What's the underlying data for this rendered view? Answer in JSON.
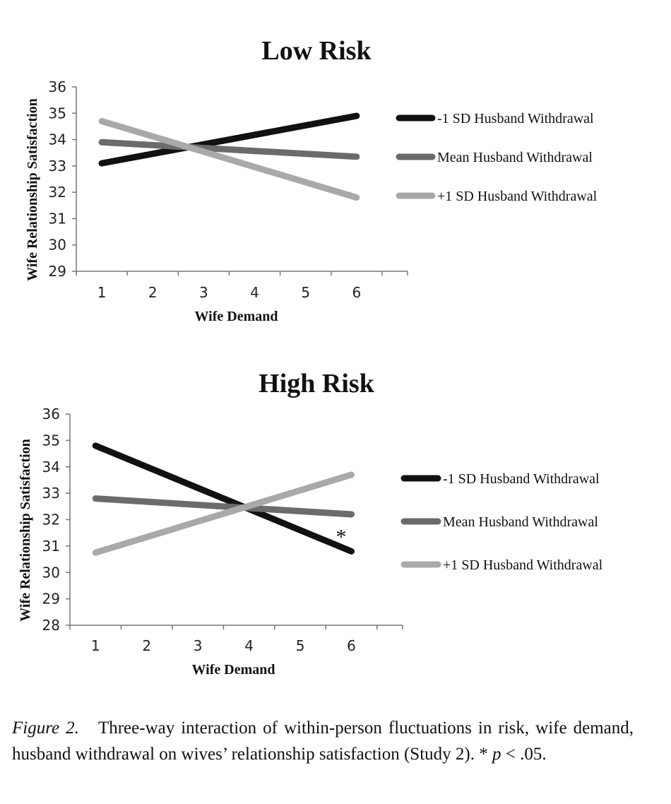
{
  "chart_data": [
    {
      "type": "line",
      "title": "Low Risk",
      "xlabel": "Wife Demand",
      "ylabel": "Wife Relationship Satisfaction",
      "x": [
        1,
        6
      ],
      "xticks": [
        1,
        2,
        3,
        4,
        5,
        6
      ],
      "xlim": [
        0.5,
        7
      ],
      "ylim": [
        29,
        36
      ],
      "yticks": [
        29,
        30,
        31,
        32,
        33,
        34,
        35,
        36
      ],
      "grid": false,
      "legend_position": "right",
      "series": [
        {
          "name": "-1 SD Husband Withdrawal",
          "values": [
            33.1,
            34.9
          ],
          "color": "#111111"
        },
        {
          "name": "Mean Husband Withdrawal",
          "values": [
            33.9,
            33.35
          ],
          "color": "#6b6b6b"
        },
        {
          "name": "+1 SD Husband Withdrawal",
          "values": [
            34.7,
            31.8
          ],
          "color": "#a9a9a9"
        }
      ],
      "annotations": []
    },
    {
      "type": "line",
      "title": "High Risk",
      "xlabel": "Wife Demand",
      "ylabel": "Wife Relationship Satisfaction",
      "x": [
        1,
        6
      ],
      "xticks": [
        1,
        2,
        3,
        4,
        5,
        6
      ],
      "xlim": [
        0.5,
        7
      ],
      "ylim": [
        28,
        36
      ],
      "yticks": [
        28,
        29,
        30,
        31,
        32,
        33,
        34,
        35,
        36
      ],
      "grid": false,
      "legend_position": "right",
      "series": [
        {
          "name": "-1 SD Husband Withdrawal",
          "values": [
            34.8,
            30.8
          ],
          "color": "#111111"
        },
        {
          "name": "Mean Husband Withdrawal",
          "values": [
            32.8,
            32.2
          ],
          "color": "#6b6b6b"
        },
        {
          "name": "+1 SD Husband Withdrawal",
          "values": [
            30.75,
            33.7
          ],
          "color": "#a9a9a9"
        }
      ],
      "annotations": [
        {
          "text": "*",
          "x": 5.8,
          "y": 31.3
        }
      ]
    }
  ],
  "caption": {
    "figure_label": "Figure 2.",
    "text_before_p": "Three-way interaction of within-person fluctuations in risk, wife demand, husband withdrawal on wives’ relationship satisfaction (Study 2). * ",
    "p_symbol": "p",
    "text_after_p": " < .05."
  }
}
